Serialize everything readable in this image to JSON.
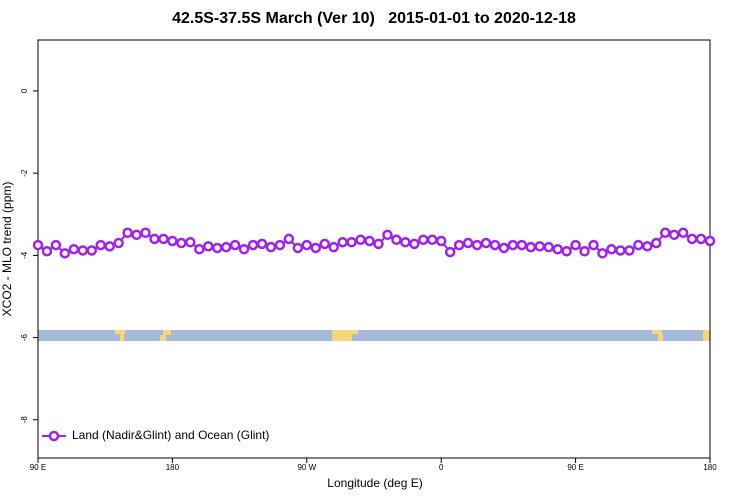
{
  "chart_data": {
    "type": "line",
    "title": "42.5S-37.5S March (Ver 10)   2015-01-01 to 2020-12-18",
    "x_label": "Longitude (deg E)",
    "y_label": "XCO2 - MLO trend (ppm)",
    "x": [
      90,
      96,
      102,
      108,
      114,
      120,
      126,
      132,
      138,
      144,
      150,
      156,
      162,
      168,
      174,
      180,
      186,
      192,
      198,
      204,
      210,
      216,
      222,
      228,
      234,
      240,
      246,
      252,
      258,
      264,
      270,
      276,
      282,
      288,
      294,
      300,
      306,
      312,
      318,
      324,
      330,
      336,
      342,
      348,
      354,
      360,
      366,
      372,
      378,
      384,
      390,
      396,
      402,
      408,
      414,
      420,
      426,
      432,
      438,
      444,
      450,
      456,
      462,
      468,
      474,
      480,
      486,
      492,
      498,
      504,
      510,
      516,
      522,
      528,
      534,
      540
    ],
    "series": [
      {
        "name": "Land (Nadir&Glint) and Ocean (Glint)",
        "color": "#a020f0",
        "values": [
          -3.75,
          -3.9,
          -3.75,
          -3.95,
          -3.85,
          -3.88,
          -3.88,
          -3.75,
          -3.78,
          -3.7,
          -3.45,
          -3.5,
          -3.45,
          -3.6,
          -3.6,
          -3.65,
          -3.7,
          -3.68,
          -3.85,
          -3.78,
          -3.82,
          -3.8,
          -3.75,
          -3.85,
          -3.75,
          -3.72,
          -3.8,
          -3.75,
          -3.6,
          -3.82,
          -3.75,
          -3.82,
          -3.72,
          -3.8,
          -3.68,
          -3.68,
          -3.62,
          -3.65,
          -3.72,
          -3.5,
          -3.62,
          -3.68,
          -3.72,
          -3.62,
          -3.62,
          -3.65,
          -3.92,
          -3.75,
          -3.7,
          -3.75,
          -3.7,
          -3.75,
          -3.82,
          -3.75,
          -3.75,
          -3.8,
          -3.78,
          -3.8,
          -3.85,
          -3.9,
          -3.75,
          -3.9,
          -3.75,
          -3.95,
          -3.85,
          -3.88,
          -3.88,
          -3.75,
          -3.78,
          -3.7,
          -3.45,
          -3.5,
          -3.45,
          -3.6,
          -3.6,
          -3.65
        ]
      }
    ],
    "xlim": [
      90,
      540
    ],
    "xticks": [
      {
        "value": 90,
        "label": "90 E"
      },
      {
        "value": 180,
        "label": "180"
      },
      {
        "value": 270,
        "label": "90 W"
      },
      {
        "value": 360,
        "label": "0"
      },
      {
        "value": 450,
        "label": "90 E"
      },
      {
        "value": 540,
        "label": "180"
      }
    ],
    "ylim": [
      -8.93,
      1.24
    ],
    "yticks": [
      0,
      -2,
      -4,
      -6,
      -8
    ],
    "legend": "bottom-left"
  }
}
